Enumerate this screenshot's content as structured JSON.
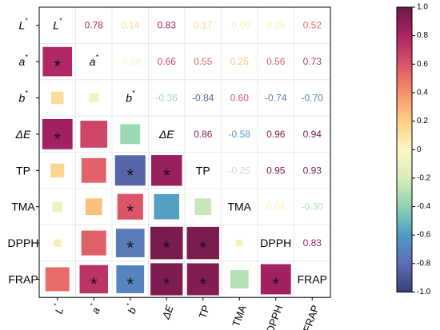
{
  "chart_data": {
    "type": "heatmap",
    "title": "",
    "variables": [
      {
        "base": "L",
        "sup": "*",
        "italic": true
      },
      {
        "base": "a",
        "sup": "*",
        "italic": true
      },
      {
        "base": "b",
        "sup": "*",
        "italic": true
      },
      {
        "base": "ΔE",
        "sup": "",
        "italic": true
      },
      {
        "base": "TP",
        "sup": "",
        "italic": false
      },
      {
        "base": "TMA",
        "sup": "",
        "italic": false
      },
      {
        "base": "DPPH",
        "sup": "",
        "italic": false
      },
      {
        "base": "FRAP",
        "sup": "",
        "italic": false
      }
    ],
    "matrix": [
      [
        1.0,
        0.78,
        0.14,
        0.83,
        0.17,
        -0.09,
        0.05,
        0.52
      ],
      [
        0.78,
        1.0,
        -0.08,
        0.66,
        0.55,
        0.25,
        0.56,
        0.73
      ],
      [
        0.14,
        -0.08,
        1.0,
        -0.36,
        -0.84,
        0.6,
        -0.74,
        -0.7
      ],
      [
        0.83,
        0.66,
        -0.36,
        1.0,
        0.86,
        -0.58,
        0.96,
        0.94
      ],
      [
        0.17,
        0.55,
        -0.84,
        0.86,
        1.0,
        -0.25,
        0.95,
        0.93
      ],
      [
        -0.09,
        0.25,
        0.6,
        -0.58,
        -0.25,
        1.0,
        0.04,
        -0.3
      ],
      [
        0.05,
        0.56,
        -0.74,
        0.96,
        0.95,
        0.04,
        1.0,
        0.83
      ],
      [
        0.52,
        0.73,
        -0.7,
        0.94,
        0.93,
        -0.3,
        0.83,
        1.0
      ]
    ],
    "upper_labels": [
      [
        null,
        "0.78",
        "0.14",
        "0.83",
        "0.17",
        "-0.09",
        "0.05",
        "0.52"
      ],
      [
        null,
        null,
        "-0.08",
        "0.66",
        "0.55",
        "0.25",
        "0.56",
        "0.73"
      ],
      [
        null,
        null,
        null,
        "-0.36",
        "-0.84",
        "0.60",
        "-0.74",
        "-0.70"
      ],
      [
        null,
        null,
        null,
        null,
        "0.86",
        "-0.58",
        "0.96",
        "0.94"
      ],
      [
        null,
        null,
        null,
        null,
        null,
        "-0.25",
        "0.95",
        "0.93"
      ],
      [
        null,
        null,
        null,
        null,
        null,
        null,
        "0.04",
        "-0.30"
      ],
      [
        null,
        null,
        null,
        null,
        null,
        null,
        null,
        "0.83"
      ],
      [
        null,
        null,
        null,
        null,
        null,
        null,
        null,
        null
      ]
    ],
    "significance_marker": "*",
    "significant_lower": [
      [
        1,
        0
      ],
      [
        3,
        0
      ],
      [
        4,
        2
      ],
      [
        4,
        3
      ],
      [
        5,
        2
      ],
      [
        6,
        2
      ],
      [
        6,
        3
      ],
      [
        6,
        4
      ],
      [
        7,
        1
      ],
      [
        7,
        2
      ],
      [
        7,
        3
      ],
      [
        7,
        4
      ],
      [
        7,
        6
      ]
    ],
    "colorbar": {
      "min": -1.0,
      "max": 1.0,
      "ticks": [
        -1.0,
        -0.8,
        -0.6,
        -0.4,
        -0.2,
        0,
        0.2,
        0.4,
        0.6,
        0.8,
        1.0
      ],
      "tick_labels": [
        "-1.0",
        "-0.8",
        "-0.6",
        "-0.4",
        "-0.2",
        "0",
        "0.2",
        "0.4",
        "0.6",
        "0.8",
        "1.0"
      ],
      "colors": [
        "#3b3f77",
        "#5e6db5",
        "#4e9bc6",
        "#8dd3b0",
        "#d9edba",
        "#fcf7c4",
        "#fdcf85",
        "#f4916a",
        "#db5467",
        "#ab2266",
        "#6a1a46"
      ]
    },
    "legend_position": "right",
    "grid": true
  }
}
